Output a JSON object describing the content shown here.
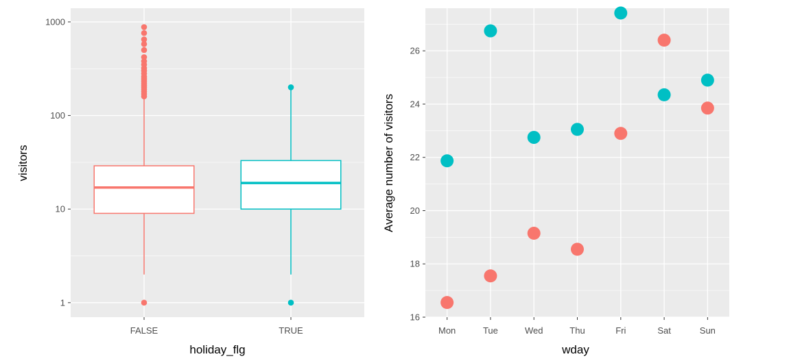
{
  "colors": {
    "false_series": "#F8766D",
    "true_series": "#00BFC4",
    "panel_bg": "#EBEBEB",
    "grid": "#FFFFFF"
  },
  "chart_data": [
    {
      "type": "box",
      "xlabel": "holiday_flg",
      "ylabel": "visitors",
      "y_scale": "log10",
      "ylim": [
        0.7,
        1400
      ],
      "y_ticks": [
        1,
        10,
        100,
        1000
      ],
      "y_tick_labels": [
        "1",
        "10",
        "100",
        "1000"
      ],
      "categories": [
        "FALSE",
        "TRUE"
      ],
      "boxes": [
        {
          "category": "FALSE",
          "min": 2,
          "q1": 9,
          "median": 17,
          "q3": 29,
          "max": 155,
          "outliers": [
            1,
            160,
            170,
            180,
            190,
            200,
            210,
            220,
            230,
            240,
            250,
            260,
            280,
            300,
            320,
            350,
            380,
            420,
            500,
            580,
            650,
            760,
            880
          ]
        },
        {
          "category": "TRUE",
          "min": 2,
          "q1": 10,
          "median": 19,
          "q3": 33,
          "max": 190,
          "outliers": [
            1,
            200
          ]
        }
      ],
      "grid": true,
      "legend": "none"
    },
    {
      "type": "scatter",
      "xlabel": "wday",
      "ylabel": "Average number of visitors",
      "categories": [
        "Mon",
        "Tue",
        "Wed",
        "Thu",
        "Fri",
        "Sat",
        "Sun"
      ],
      "ylim": [
        16,
        27.6
      ],
      "y_ticks": [
        16,
        18,
        20,
        22,
        24,
        26
      ],
      "series": [
        {
          "group": "FALSE",
          "values": [
            16.55,
            17.55,
            19.15,
            18.55,
            22.9,
            26.4,
            23.85
          ]
        },
        {
          "group": "TRUE",
          "values": [
            21.87,
            26.75,
            22.75,
            23.05,
            27.42,
            24.35,
            24.9
          ]
        }
      ],
      "grid": true,
      "legend": "none"
    }
  ]
}
